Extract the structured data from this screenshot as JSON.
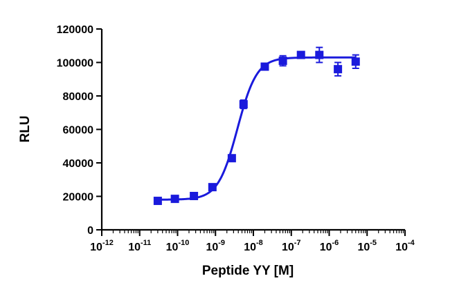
{
  "chart_data": {
    "type": "scatter",
    "title": "",
    "xlabel": "Peptide YY [M]",
    "ylabel": "RLU",
    "x_scale": "log",
    "xlim": [
      1e-12,
      0.0001
    ],
    "ylim": [
      0,
      120000
    ],
    "x_tick_labels": [
      {
        "base": "10",
        "exp": "-12"
      },
      {
        "base": "10",
        "exp": "-11"
      },
      {
        "base": "10",
        "exp": "-10"
      },
      {
        "base": "10",
        "exp": "-9"
      },
      {
        "base": "10",
        "exp": "-8"
      },
      {
        "base": "10",
        "exp": "-7"
      },
      {
        "base": "10",
        "exp": "-6"
      },
      {
        "base": "10",
        "exp": "-5"
      },
      {
        "base": "10",
        "exp": "-4"
      }
    ],
    "y_tick_labels": [
      "0",
      "20000",
      "40000",
      "60000",
      "80000",
      "100000",
      "120000"
    ],
    "grid": false,
    "legend": "none",
    "color": "#1a1adc",
    "series": [
      {
        "marker": "square",
        "points": [
          {
            "x": 3e-11,
            "y": 17300,
            "err": 1200
          },
          {
            "x": 8.5e-11,
            "y": 18500,
            "err": 1000
          },
          {
            "x": 2.7e-10,
            "y": 20200,
            "err": 1000
          },
          {
            "x": 8.3e-10,
            "y": 25500,
            "err": 1200
          },
          {
            "x": 2.7e-09,
            "y": 42800,
            "err": 1500
          },
          {
            "x": 5.5e-09,
            "y": 75000,
            "err": 2500
          },
          {
            "x": 2e-08,
            "y": 97500,
            "err": 1500
          },
          {
            "x": 6e-08,
            "y": 101000,
            "err": 3000
          },
          {
            "x": 1.8e-07,
            "y": 104500,
            "err": 1500
          },
          {
            "x": 5.5e-07,
            "y": 104500,
            "err": 4500
          },
          {
            "x": 1.7e-06,
            "y": 96000,
            "err": 4000
          },
          {
            "x": 5e-06,
            "y": 100500,
            "err": 4000
          }
        ]
      }
    ],
    "fit": {
      "model": "four-parameter logistic",
      "bottom": 18000,
      "top": 103000,
      "ec50": 3.8e-09,
      "hill": 1.7,
      "x_range": [
        3e-11,
        5e-06
      ]
    }
  }
}
